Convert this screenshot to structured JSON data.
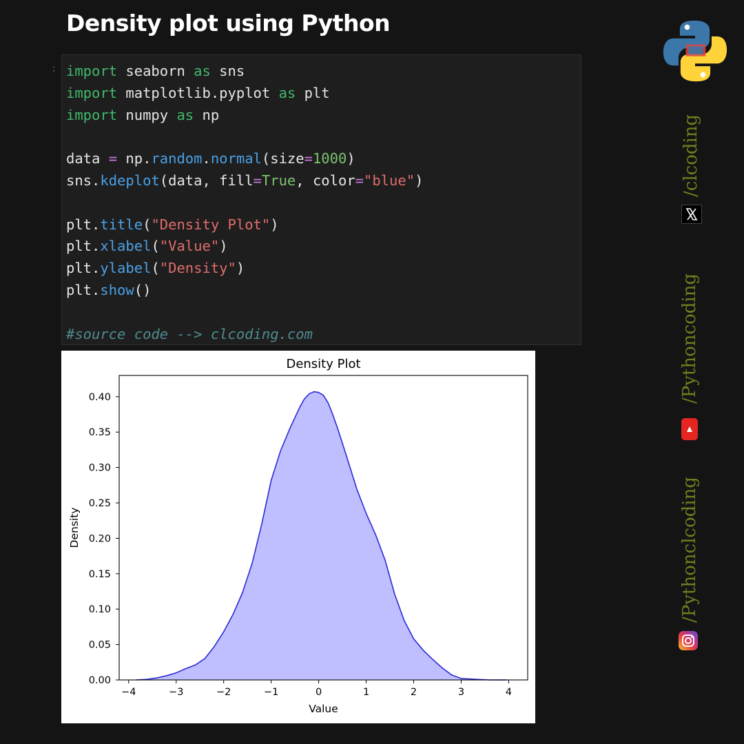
{
  "header": {
    "title": "Density plot using Python"
  },
  "code": {
    "cell_marker": ":",
    "lines": [
      [
        {
          "t": "import",
          "c": "kw"
        },
        {
          "t": " seaborn "
        },
        {
          "t": "as",
          "c": "kw"
        },
        {
          "t": " sns"
        }
      ],
      [
        {
          "t": "import",
          "c": "kw"
        },
        {
          "t": " matplotlib.pyplot "
        },
        {
          "t": "as",
          "c": "kw"
        },
        {
          "t": " plt"
        }
      ],
      [
        {
          "t": "import",
          "c": "kw"
        },
        {
          "t": " numpy "
        },
        {
          "t": "as",
          "c": "kw"
        },
        {
          "t": " np"
        }
      ],
      [],
      [
        {
          "t": "data "
        },
        {
          "t": "=",
          "c": "op"
        },
        {
          "t": " np."
        },
        {
          "t": "random",
          "c": "fn"
        },
        {
          "t": "."
        },
        {
          "t": "normal",
          "c": "fn"
        },
        {
          "t": "(size"
        },
        {
          "t": "=",
          "c": "op"
        },
        {
          "t": "1000",
          "c": "num"
        },
        {
          "t": ")"
        }
      ],
      [
        {
          "t": "sns."
        },
        {
          "t": "kdeplot",
          "c": "fn"
        },
        {
          "t": "(data, fill"
        },
        {
          "t": "=",
          "c": "op"
        },
        {
          "t": "True",
          "c": "bool"
        },
        {
          "t": ", color"
        },
        {
          "t": "=",
          "c": "op"
        },
        {
          "t": "\"blue\"",
          "c": "str"
        },
        {
          "t": ")"
        }
      ],
      [],
      [
        {
          "t": "plt."
        },
        {
          "t": "title",
          "c": "fn"
        },
        {
          "t": "("
        },
        {
          "t": "\"Density Plot\"",
          "c": "str"
        },
        {
          "t": ")"
        }
      ],
      [
        {
          "t": "plt."
        },
        {
          "t": "xlabel",
          "c": "fn"
        },
        {
          "t": "("
        },
        {
          "t": "\"Value\"",
          "c": "str"
        },
        {
          "t": ")"
        }
      ],
      [
        {
          "t": "plt."
        },
        {
          "t": "ylabel",
          "c": "fn"
        },
        {
          "t": "("
        },
        {
          "t": "\"Density\"",
          "c": "str"
        },
        {
          "t": ")"
        }
      ],
      [
        {
          "t": "plt."
        },
        {
          "t": "show",
          "c": "fn"
        },
        {
          "t": "()"
        }
      ],
      [],
      [
        {
          "t": "#source code --> clcoding.com",
          "c": "comment"
        }
      ]
    ]
  },
  "social": {
    "twitter_handle": "/clcoding",
    "youtube_handle": "/Pythoncoding",
    "instagram_handle": "/Pythonclcoding"
  },
  "colors": {
    "background": "#141414",
    "handle_text": "#6f7f1f",
    "kde_line": "#2a2ad6",
    "kde_fill": "#bfbfff"
  },
  "chart_data": {
    "type": "area",
    "title": "Density Plot",
    "xlabel": "Value",
    "ylabel": "Density",
    "xlim": [
      -4.2,
      4.4
    ],
    "ylim": [
      0,
      0.43
    ],
    "xticks": [
      -4,
      -3,
      -2,
      -1,
      0,
      1,
      2,
      3,
      4
    ],
    "xtick_labels": [
      "−4",
      "−3",
      "−2",
      "−1",
      "0",
      "1",
      "2",
      "3",
      "4"
    ],
    "yticks": [
      0.0,
      0.05,
      0.1,
      0.15,
      0.2,
      0.25,
      0.3,
      0.35,
      0.4
    ],
    "ytick_labels": [
      "0.00",
      "0.05",
      "0.10",
      "0.15",
      "0.20",
      "0.25",
      "0.30",
      "0.35",
      "0.40"
    ],
    "grid": false,
    "series": [
      {
        "fill": true,
        "x": [
          -3.85,
          -3.6,
          -3.4,
          -3.2,
          -3.0,
          -2.8,
          -2.6,
          -2.4,
          -2.2,
          -2.0,
          -1.8,
          -1.6,
          -1.4,
          -1.2,
          -1.0,
          -0.8,
          -0.6,
          -0.4,
          -0.3,
          -0.2,
          -0.1,
          0.0,
          0.1,
          0.2,
          0.3,
          0.4,
          0.6,
          0.8,
          1.0,
          1.2,
          1.4,
          1.6,
          1.8,
          2.0,
          2.2,
          2.4,
          2.6,
          2.8,
          3.0,
          3.3,
          3.6,
          3.95
        ],
        "y": [
          0.0,
          0.001,
          0.003,
          0.006,
          0.01,
          0.016,
          0.021,
          0.03,
          0.047,
          0.068,
          0.093,
          0.124,
          0.165,
          0.22,
          0.282,
          0.324,
          0.356,
          0.385,
          0.397,
          0.404,
          0.407,
          0.406,
          0.402,
          0.391,
          0.374,
          0.355,
          0.313,
          0.27,
          0.235,
          0.205,
          0.169,
          0.121,
          0.084,
          0.058,
          0.042,
          0.029,
          0.017,
          0.007,
          0.002,
          0.001,
          0.0,
          0.0
        ]
      }
    ]
  }
}
